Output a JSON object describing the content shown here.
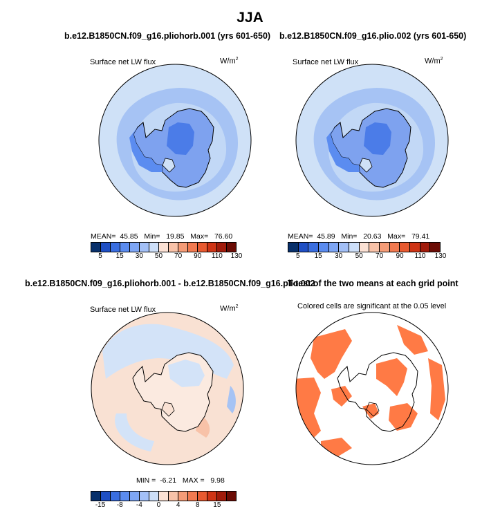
{
  "title": "JJA",
  "panels": {
    "p1": {
      "title": "b.e12.B1850CN.f09_g16.pliohorb.001 (yrs 601-650)",
      "subtitle": "Surface net LW flux",
      "units": "W/m",
      "units_exp": "2",
      "stats": {
        "mean_label": "MEAN=",
        "mean": "45.85",
        "min_label": "Min=",
        "min": "19.85",
        "max_label": "Max=",
        "max": "76.60"
      }
    },
    "p2": {
      "title": "b.e12.B1850CN.f09_g16.plio.002 (yrs 601-650)",
      "subtitle": "Surface net LW flux",
      "units": "W/m",
      "units_exp": "2",
      "stats": {
        "mean_label": "MEAN=",
        "mean": "45.89",
        "min_label": "Min=",
        "min": "20.63",
        "max_label": "Max=",
        "max": "79.41"
      }
    },
    "p3": {
      "title": "b.e12.B1850CN.f09_g16.pliohorb.001 - b.e12.B1850CN.f09_g16.plio.002",
      "subtitle": "Surface net LW flux",
      "units": "W/m",
      "units_exp": "2",
      "stats": {
        "min_label": "MIN =",
        "min": "-6.21",
        "max_label": "MAX =",
        "max": "9.98"
      }
    },
    "p4": {
      "title": "T-test of the two means at each grid point",
      "subtitle": "Colored cells are significant at the 0.05 level"
    }
  },
  "colorbars": {
    "absolute": {
      "colors": [
        "#08306b",
        "#1f4fc4",
        "#3a6ee0",
        "#5b8cf0",
        "#7ea6f5",
        "#a3c0f7",
        "#cddff9",
        "#fbe1d4",
        "#f8c2a8",
        "#f59c77",
        "#f27a50",
        "#e85a30",
        "#cf3415",
        "#a11b0b",
        "#6b0c05"
      ],
      "tick_labels": [
        "5",
        "15",
        "30",
        "50",
        "70",
        "90",
        "110",
        "130"
      ]
    },
    "difference": {
      "colors": [
        "#08306b",
        "#1f4fc4",
        "#3a6ee0",
        "#5b8cf0",
        "#7ea6f5",
        "#a3c0f7",
        "#cddff9",
        "#fbe1d4",
        "#f8c2a8",
        "#f59c77",
        "#f27a50",
        "#e85a30",
        "#cf3415",
        "#a11b0b",
        "#6b0c05"
      ],
      "tick_labels": [
        "-15",
        "-8",
        "-4",
        "0",
        "4",
        "8",
        "15"
      ]
    }
  },
  "map_colors": {
    "ocean_light": "#cfe1f7",
    "ocean_mid": "#a6c3f4",
    "land_mid": "#7ea2ef",
    "land_deep": "#4b7ce8",
    "diff_pos": "#f9e1d3",
    "diff_neg": "#d3e3f8",
    "sig": "#ff7a45"
  }
}
